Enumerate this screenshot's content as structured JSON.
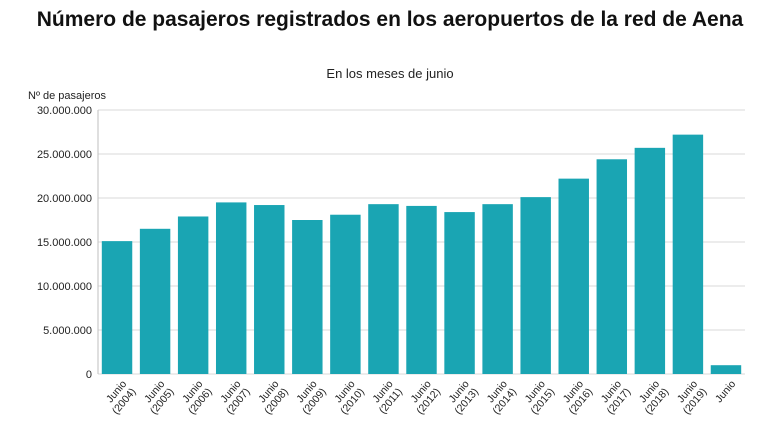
{
  "chart_data": {
    "type": "bar",
    "title": "Número de pasajeros registrados en los aeropuertos de la red de Aena",
    "subtitle": "En los meses de junio",
    "ylabel": "Nº de pasajeros",
    "xlabel": "",
    "ylim": [
      0,
      30000000
    ],
    "yticks": [
      {
        "value": 0,
        "label": "0"
      },
      {
        "value": 5000000,
        "label": "5.000.000"
      },
      {
        "value": 10000000,
        "label": "10.000.000"
      },
      {
        "value": 15000000,
        "label": "15.000.000"
      },
      {
        "value": 20000000,
        "label": "20.000.000"
      },
      {
        "value": 25000000,
        "label": "25.000.000"
      },
      {
        "value": 30000000,
        "label": "30.000.000"
      }
    ],
    "grid": true,
    "colors": {
      "bar": "#1aa5b3",
      "grid": "#d9d9d9"
    },
    "categories": [
      {
        "line1": "Junio",
        "line2": "(2004)"
      },
      {
        "line1": "Junio",
        "line2": "(2005)"
      },
      {
        "line1": "Junio",
        "line2": "(2006)"
      },
      {
        "line1": "Junio",
        "line2": "(2007)"
      },
      {
        "line1": "Junio",
        "line2": "(2008)"
      },
      {
        "line1": "Junio",
        "line2": "(2009)"
      },
      {
        "line1": "Junio",
        "line2": "(2010)"
      },
      {
        "line1": "Junio",
        "line2": "(2011)"
      },
      {
        "line1": "Junio",
        "line2": "(2012)"
      },
      {
        "line1": "Junio",
        "line2": "(2013)"
      },
      {
        "line1": "Junio",
        "line2": "(2014)"
      },
      {
        "line1": "Junio",
        "line2": "(2015)"
      },
      {
        "line1": "Junio",
        "line2": "(2016)"
      },
      {
        "line1": "Junio",
        "line2": "(2017)"
      },
      {
        "line1": "Junio",
        "line2": "(2018)"
      },
      {
        "line1": "Junio",
        "line2": "(2019)"
      },
      {
        "line1": "Junio",
        "line2": ""
      }
    ],
    "values": [
      15100000,
      16500000,
      17900000,
      19500000,
      19200000,
      17500000,
      18100000,
      19300000,
      19100000,
      18400000,
      19300000,
      20100000,
      22200000,
      24400000,
      25700000,
      27200000,
      1000000
    ]
  }
}
